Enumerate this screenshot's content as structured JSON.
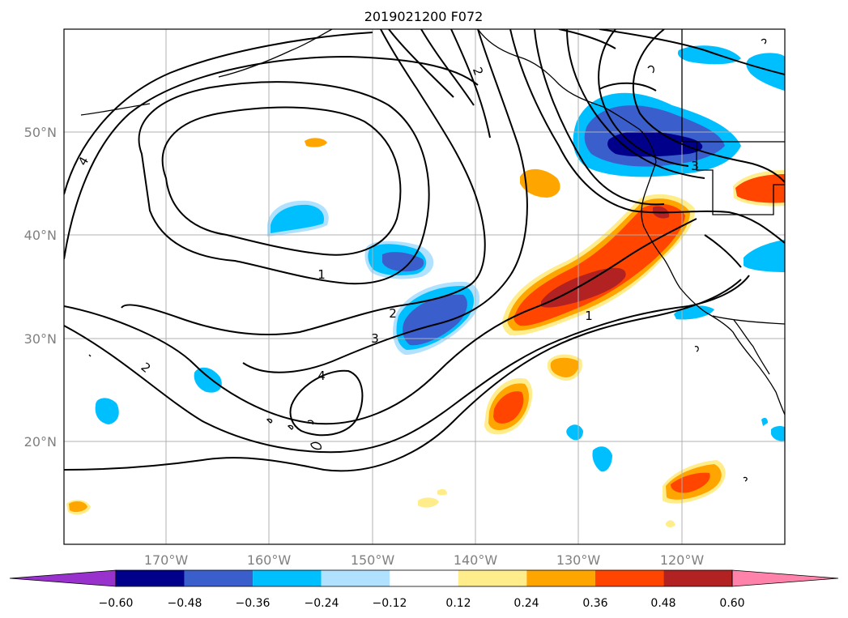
{
  "title": "2019021200 F072",
  "map": {
    "lat_labels": [
      "50°N",
      "40°N",
      "30°N",
      "20°N"
    ],
    "lon_labels": [
      "170°W",
      "160°W",
      "150°W",
      "140°W",
      "130°W",
      "120°W"
    ],
    "gridlines": true,
    "extent": {
      "lon_min": -180,
      "lon_max": -110,
      "lat_min": 10,
      "lat_max": 60
    },
    "contour_labels": [
      "1",
      "2",
      "3",
      "4",
      "4",
      "2",
      "2",
      "1",
      "3"
    ]
  },
  "colorbar": {
    "tick_labels": [
      "−0.60",
      "−0.48",
      "−0.36",
      "−0.24",
      "−0.12",
      "0.12",
      "0.24",
      "0.36",
      "0.48",
      "0.60"
    ],
    "colors": [
      "#9932cc",
      "#00008b",
      "#3a5fcd",
      "#00bfff",
      "#b0e2ff",
      "#ffffff",
      "#ffec8b",
      "#ffa500",
      "#ff4500",
      "#b22222",
      "#ff82ab"
    ],
    "extend": "both"
  }
}
